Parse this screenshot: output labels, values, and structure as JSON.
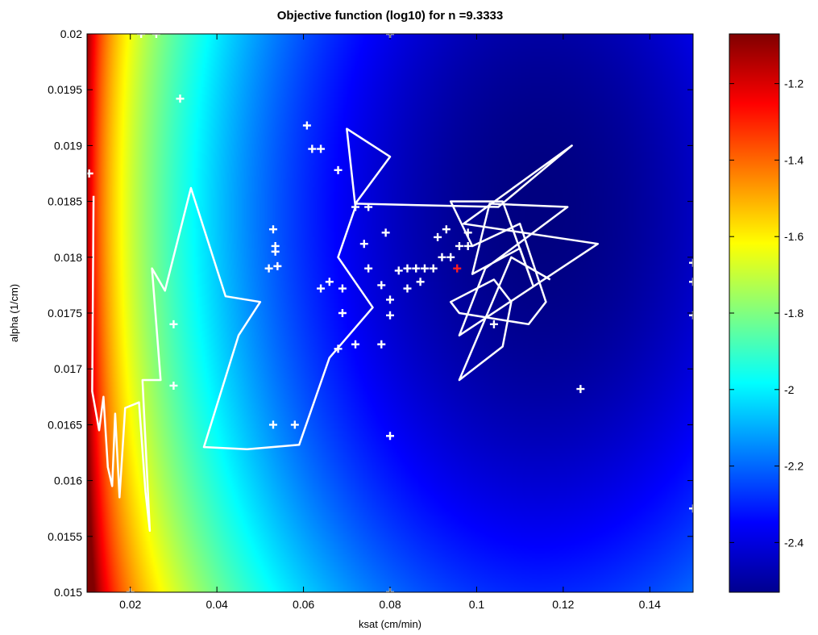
{
  "chart_data": {
    "type": "heatmap",
    "title": "Objective function (log10) for n =9.3333",
    "xlabel": "ksat (cm/min)",
    "ylabel": "alpha (1/cm)",
    "xlim": [
      0.01,
      0.15
    ],
    "ylim": [
      0.015,
      0.02
    ],
    "xticks": [
      0.02,
      0.04,
      0.06,
      0.08,
      0.1,
      0.12,
      0.14
    ],
    "xtick_labels": [
      "0.02",
      "0.04",
      "0.06",
      "0.08",
      "0.1",
      "0.12",
      "0.14"
    ],
    "yticks": [
      0.015,
      0.0155,
      0.016,
      0.0165,
      0.017,
      0.0175,
      0.018,
      0.0185,
      0.019,
      0.0195,
      0.02
    ],
    "ytick_labels": [
      "0.015",
      "0.0155",
      "0.016",
      "0.0165",
      "0.017",
      "0.0175",
      "0.018",
      "0.0185",
      "0.019",
      "0.0195",
      "0.02"
    ],
    "colormap": "jet",
    "colorbar": {
      "clim": [
        -2.53,
        -1.07
      ],
      "ticks": [
        -2.4,
        -2.2,
        -2.0,
        -1.8,
        -1.6,
        -1.4,
        -1.2
      ],
      "tick_labels": [
        "-2.4",
        "-2.2",
        "-2",
        "-1.8",
        "-1.6",
        "-1.4",
        "-1.2"
      ]
    },
    "minimum": {
      "x": 0.114,
      "y": 0.0184,
      "value": -2.53
    },
    "path_color": "#ffffff",
    "marker_color": "#ffffff",
    "best_marker_color": "#ff2020",
    "search_path": [
      [
        0.0115,
        0.01855
      ],
      [
        0.0112,
        0.0168
      ],
      [
        0.0128,
        0.01645
      ],
      [
        0.0138,
        0.01675
      ],
      [
        0.0148,
        0.01612
      ],
      [
        0.0158,
        0.01595
      ],
      [
        0.0165,
        0.0166
      ],
      [
        0.0175,
        0.01585
      ],
      [
        0.0188,
        0.01665
      ],
      [
        0.022,
        0.0167
      ],
      [
        0.0235,
        0.0159
      ],
      [
        0.0245,
        0.01555
      ],
      [
        0.0228,
        0.0169
      ],
      [
        0.027,
        0.0169
      ],
      [
        0.025,
        0.0179
      ],
      [
        0.028,
        0.0177
      ],
      [
        0.034,
        0.01862
      ],
      [
        0.042,
        0.01765
      ],
      [
        0.05,
        0.0176
      ],
      [
        0.045,
        0.0173
      ],
      [
        0.037,
        0.0163
      ],
      [
        0.047,
        0.01628
      ],
      [
        0.059,
        0.01632
      ],
      [
        0.066,
        0.0171
      ],
      [
        0.076,
        0.01755
      ],
      [
        0.068,
        0.018
      ],
      [
        0.072,
        0.01845
      ],
      [
        0.07,
        0.01915
      ],
      [
        0.08,
        0.0189
      ],
      [
        0.072,
        0.01848
      ],
      [
        0.105,
        0.01845
      ],
      [
        0.122,
        0.019
      ],
      [
        0.097,
        0.0183
      ],
      [
        0.128,
        0.01812
      ],
      [
        0.096,
        0.0173
      ],
      [
        0.102,
        0.0179
      ],
      [
        0.121,
        0.01845
      ],
      [
        0.103,
        0.01848
      ],
      [
        0.099,
        0.01785
      ],
      [
        0.11,
        0.01808
      ],
      [
        0.113,
        0.01775
      ],
      [
        0.106,
        0.0185
      ],
      [
        0.094,
        0.0185
      ],
      [
        0.099,
        0.0181
      ],
      [
        0.11,
        0.0183
      ],
      [
        0.116,
        0.0176
      ],
      [
        0.112,
        0.0174
      ],
      [
        0.096,
        0.0175
      ],
      [
        0.094,
        0.0176
      ],
      [
        0.104,
        0.0178
      ],
      [
        0.108,
        0.0176
      ],
      [
        0.106,
        0.0172
      ],
      [
        0.096,
        0.0169
      ],
      [
        0.108,
        0.018
      ],
      [
        0.117,
        0.0178
      ]
    ],
    "points": [
      [
        0.0315,
        0.01942
      ],
      [
        0.0608,
        0.01918
      ],
      [
        0.062,
        0.01897
      ],
      [
        0.064,
        0.01897
      ],
      [
        0.068,
        0.01878
      ],
      [
        0.072,
        0.01845
      ],
      [
        0.075,
        0.01845
      ],
      [
        0.053,
        0.01825
      ],
      [
        0.054,
        0.01792
      ],
      [
        0.052,
        0.0179
      ],
      [
        0.074,
        0.01812
      ],
      [
        0.075,
        0.0179
      ],
      [
        0.082,
        0.01788
      ],
      [
        0.084,
        0.0179
      ],
      [
        0.086,
        0.0179
      ],
      [
        0.088,
        0.0179
      ],
      [
        0.09,
        0.0179
      ],
      [
        0.092,
        0.018
      ],
      [
        0.094,
        0.018
      ],
      [
        0.096,
        0.0181
      ],
      [
        0.098,
        0.0181
      ],
      [
        0.078,
        0.01775
      ],
      [
        0.08,
        0.01762
      ],
      [
        0.08,
        0.01748
      ],
      [
        0.069,
        0.01772
      ],
      [
        0.066,
        0.01778
      ],
      [
        0.064,
        0.01772
      ],
      [
        0.069,
        0.0175
      ],
      [
        0.072,
        0.01722
      ],
      [
        0.068,
        0.01718
      ],
      [
        0.078,
        0.01722
      ],
      [
        0.084,
        0.01772
      ],
      [
        0.087,
        0.01778
      ],
      [
        0.098,
        0.01822
      ],
      [
        0.091,
        0.01818
      ],
      [
        0.079,
        0.01822
      ],
      [
        0.093,
        0.01825
      ],
      [
        0.104,
        0.0174
      ],
      [
        0.124,
        0.01682
      ],
      [
        0.03,
        0.0174
      ],
      [
        0.03,
        0.01685
      ],
      [
        0.053,
        0.0165
      ],
      [
        0.058,
        0.0165
      ],
      [
        0.08,
        0.0164
      ],
      [
        0.0535,
        0.01805
      ],
      [
        0.0535,
        0.0181
      ],
      [
        0.0225,
        0.02
      ],
      [
        0.026,
        0.02
      ],
      [
        0.15,
        0.01795
      ],
      [
        0.15,
        0.01778
      ],
      [
        0.15,
        0.01748
      ],
      [
        0.15,
        0.01575
      ],
      [
        0.08,
        0.015
      ],
      [
        0.02,
        0.015
      ],
      [
        0.08,
        0.02
      ],
      [
        0.0105,
        0.01875
      ]
    ],
    "best_point": [
      0.0955,
      0.0179
    ]
  }
}
